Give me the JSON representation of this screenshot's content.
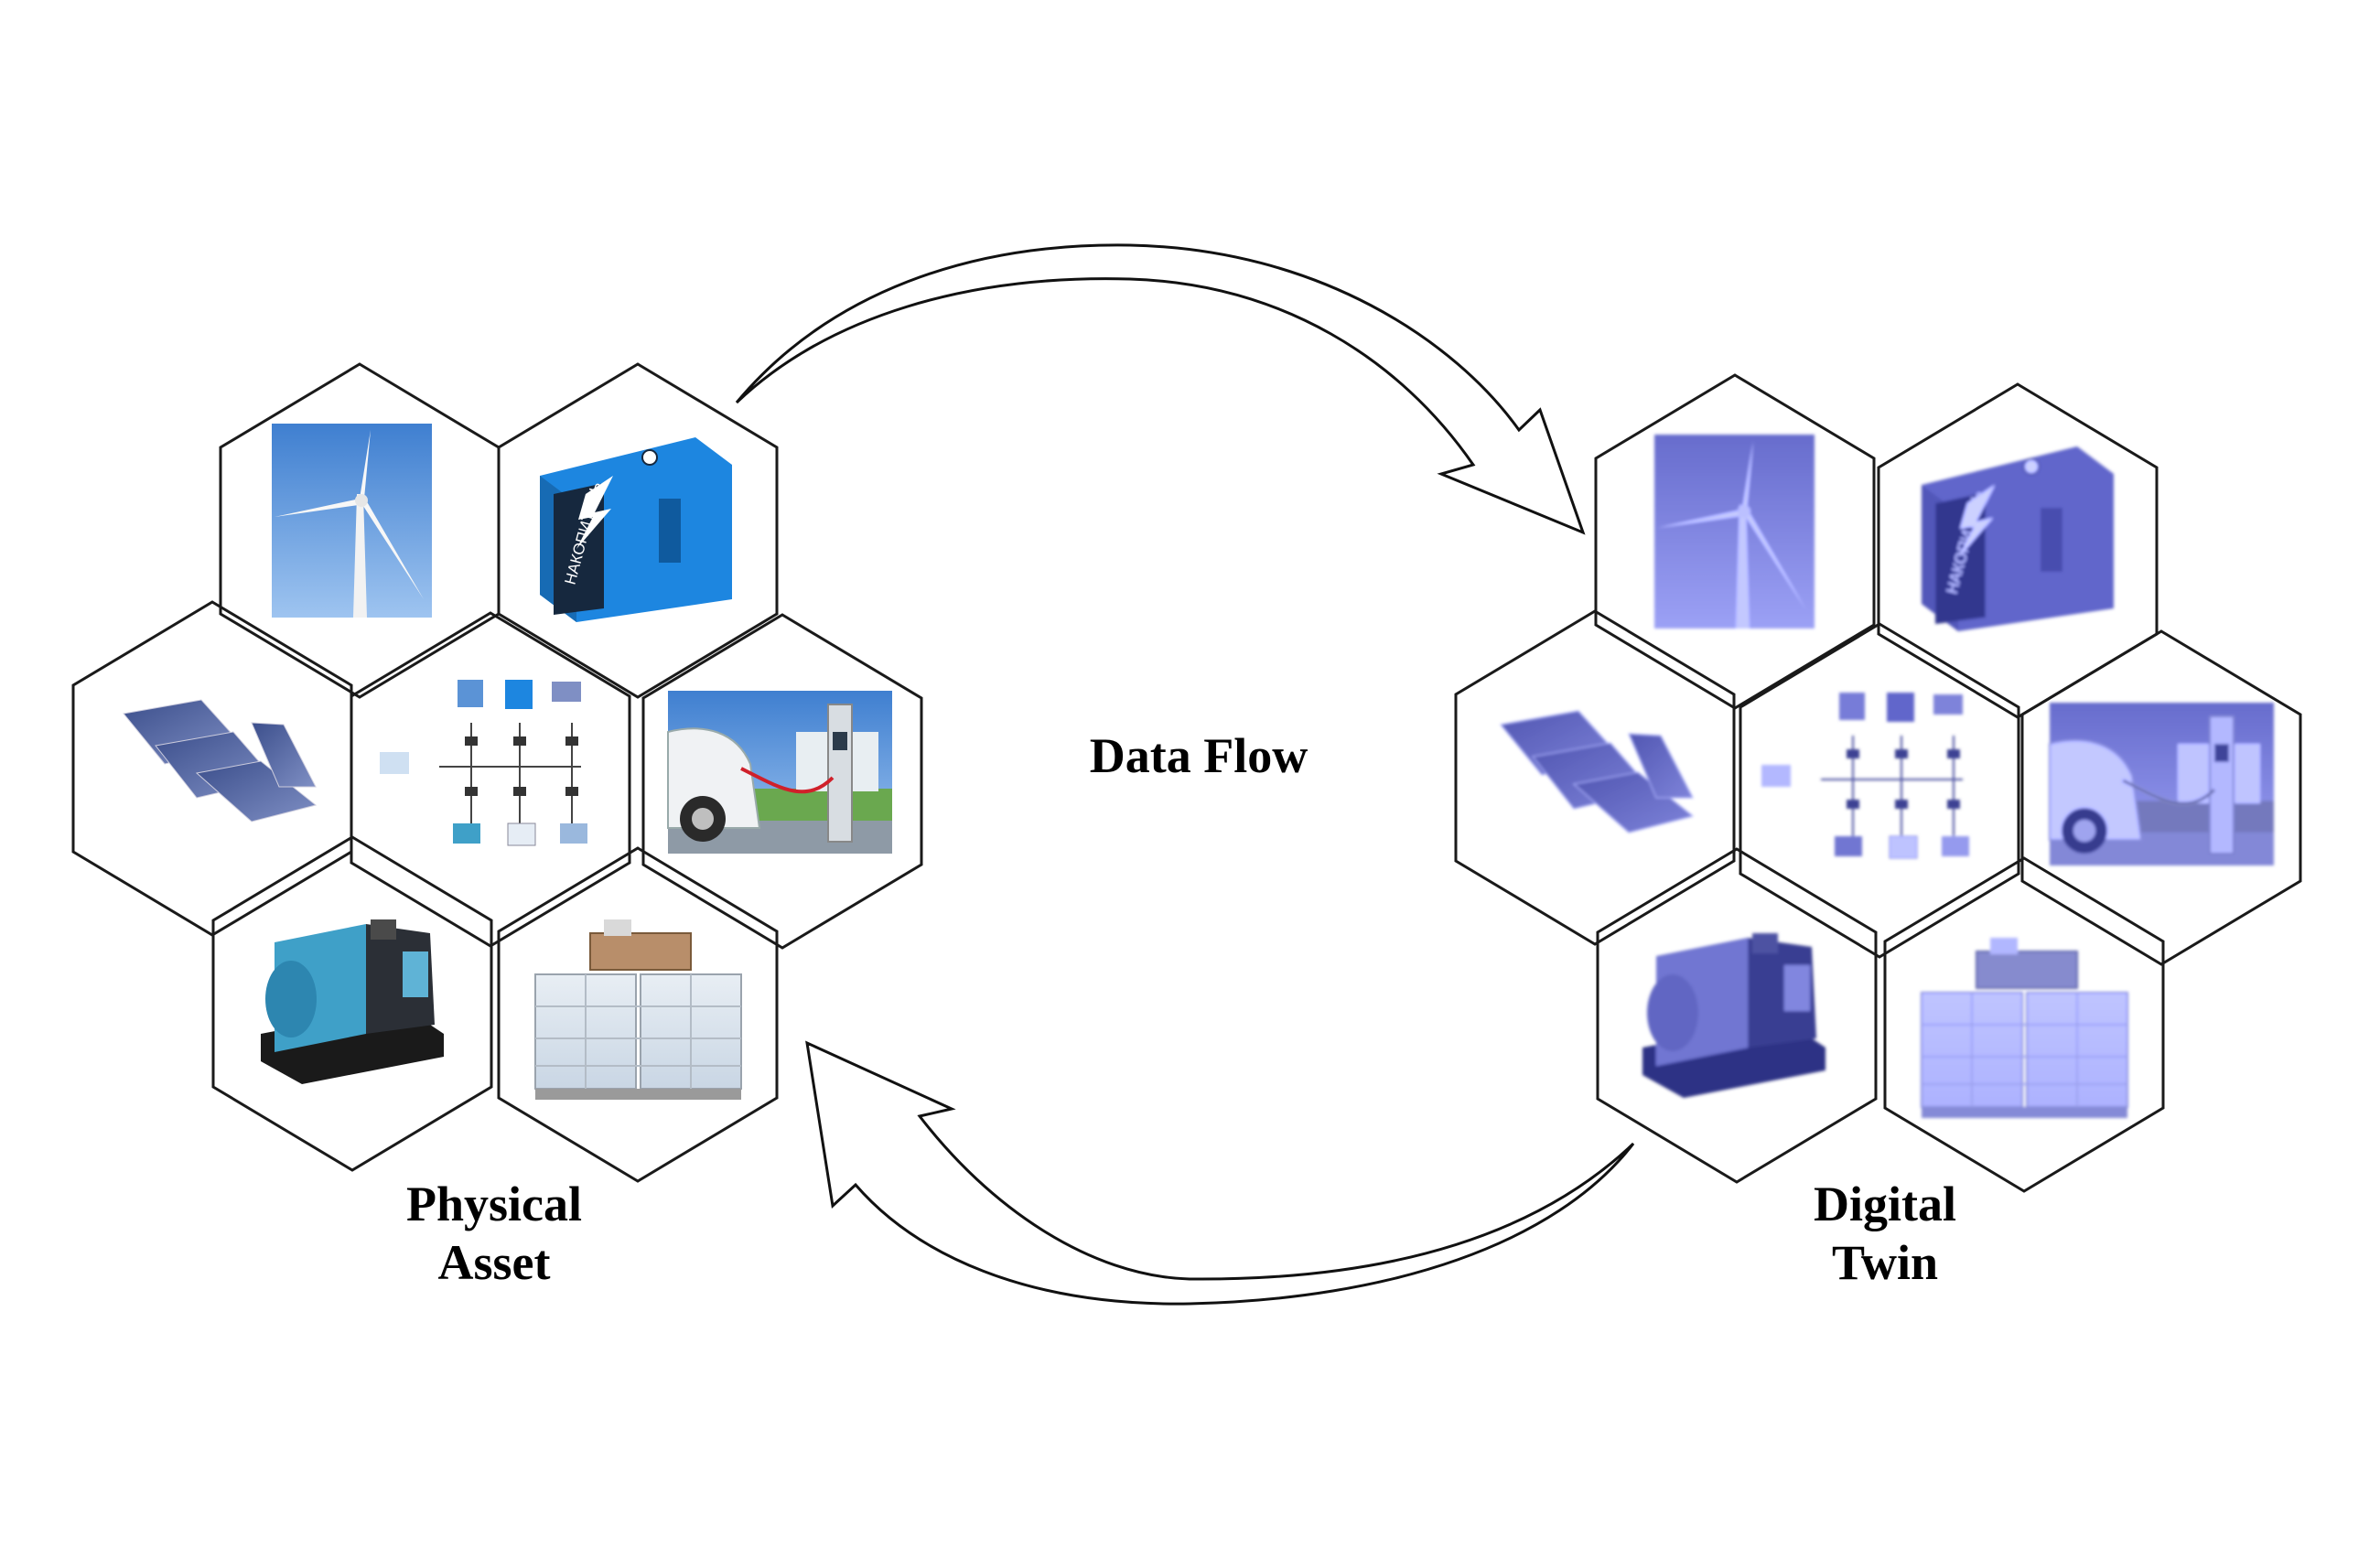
{
  "labels": {
    "data_flow": "Data Flow",
    "physical_line1": "Physical",
    "physical_line2": "Asset",
    "twin_line1": "Digital",
    "twin_line2": "Twin"
  },
  "clusters": [
    {
      "id": "physical",
      "palette": "natural",
      "tiles": [
        "wind-turbine",
        "battery-storage",
        "solar-panels",
        "microgrid-diagram",
        "ev-charger",
        "diesel-generator",
        "hydrogen-tanks"
      ]
    },
    {
      "id": "twin",
      "palette": "blue-tint",
      "tiles": [
        "wind-turbine",
        "battery-storage",
        "solar-panels",
        "microgrid-diagram",
        "ev-charger",
        "diesel-generator",
        "hydrogen-tanks"
      ]
    }
  ],
  "colors": {
    "outline": "#1a1a1a",
    "twin_tint": "#8b8fe0",
    "sky": "#5b93d6",
    "battery": "#1d86e0",
    "grass": "#6aa84f"
  }
}
